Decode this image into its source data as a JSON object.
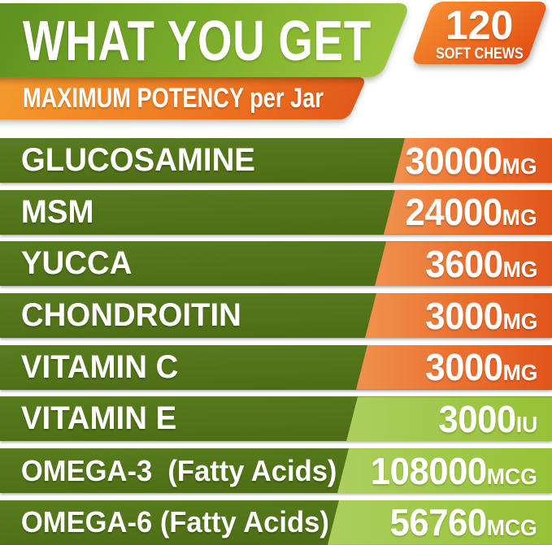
{
  "header": {
    "title": "WHAT YOU GET",
    "badge": {
      "count": "120",
      "label": "SOFT CHEWS"
    },
    "subtitle": {
      "bold": "MAXIMUM POTENCY",
      "regular": "per Jar"
    }
  },
  "table": {
    "rows": [
      {
        "label": "GLUCOSAMINE",
        "value": "30000",
        "unit": "MG",
        "accent": "orange"
      },
      {
        "label": "MSM",
        "value": "24000",
        "unit": "MG",
        "accent": "orange"
      },
      {
        "label": "YUCCA",
        "value": "3600",
        "unit": "MG",
        "accent": "orange"
      },
      {
        "label": "CHONDROITIN",
        "value": "3000",
        "unit": "MG",
        "accent": "orange"
      },
      {
        "label": "VITAMIN C",
        "value": "3000",
        "unit": "MG",
        "accent": "orange"
      },
      {
        "label": "VITAMIN E",
        "value": "3000",
        "unit": "IU",
        "accent": "green"
      },
      {
        "label": "OMEGA-3  (Fatty Acids)",
        "value": "108000",
        "unit": "MCG",
        "accent": "green"
      },
      {
        "label": "OMEGA-6 (Fatty Acids)",
        "value": "56760",
        "unit": "MCG",
        "accent": "green"
      }
    ]
  },
  "colors": {
    "row_green": "#517217",
    "header_green_light": "#9cc63e",
    "header_green_dark": "#5a8b1e",
    "accent_orange_light": "#f0914e",
    "accent_orange_dark": "#e2551a",
    "accent_green_light": "#accf5f",
    "accent_green_dark": "#97c136",
    "badge_orange": "#e85c1c",
    "text": "#ffffff"
  },
  "chart_data": {
    "type": "table",
    "title": "WHAT YOU GET",
    "subtitle": "MAXIMUM POTENCY per Jar",
    "badge": "120 SOFT CHEWS",
    "categories": [
      "GLUCOSAMINE",
      "MSM",
      "YUCCA",
      "CHONDROITIN",
      "VITAMIN C",
      "VITAMIN E",
      "OMEGA-3 (Fatty Acids)",
      "OMEGA-6 (Fatty Acids)"
    ],
    "values": [
      30000,
      24000,
      3600,
      3000,
      3000,
      3000,
      108000,
      56760
    ],
    "units": [
      "MG",
      "MG",
      "MG",
      "MG",
      "MG",
      "IU",
      "MCG",
      "MCG"
    ]
  }
}
